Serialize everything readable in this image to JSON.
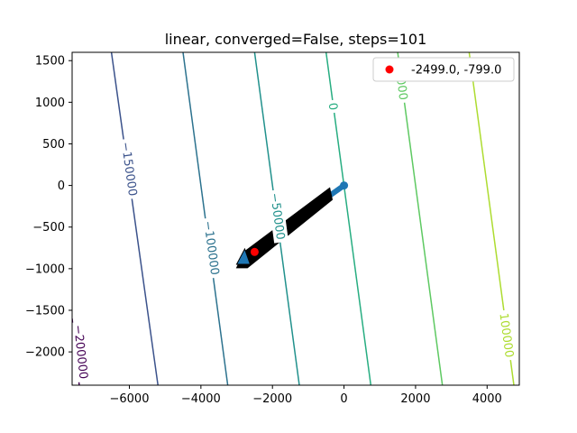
{
  "chart_data": {
    "type": "contour",
    "title": "linear, converged=False, steps=101",
    "xlabel": "",
    "ylabel": "",
    "xlim": [
      -7600,
      4900
    ],
    "ylim": [
      -2400,
      1600
    ],
    "x_ticks": [
      -6000,
      -4000,
      -2000,
      0,
      2000,
      4000
    ],
    "x_tick_labels": [
      "−6000",
      "−4000",
      "−2000",
      "0",
      "2000",
      "4000"
    ],
    "y_ticks": [
      1500,
      1000,
      500,
      0,
      -500,
      -1000,
      -1500,
      -2000
    ],
    "y_tick_labels": [
      "1500",
      "1000",
      "500",
      "0",
      "−500",
      "−1000",
      "−1500",
      "−2000"
    ],
    "grid": false,
    "contours": [
      {
        "level": -200000,
        "label": "−200000",
        "color": "#440154",
        "points": [
          [
            -7600,
            -1600
          ],
          [
            -7400,
            -2400
          ]
        ],
        "label_at": [
          -7350,
          -2000
        ]
      },
      {
        "level": -150000,
        "label": "−150000",
        "color": "#3b528b",
        "points": [
          [
            -6500,
            1600
          ],
          [
            -5200,
            -2400
          ]
        ],
        "label_at": [
          -6000,
          200
        ]
      },
      {
        "level": -100000,
        "label": "−100000",
        "color": "#2c728e",
        "points": [
          [
            -4500,
            1600
          ],
          [
            -3250,
            -2400
          ]
        ],
        "label_at": [
          -3700,
          -750
        ]
      },
      {
        "level": -50000,
        "label": "−50000",
        "color": "#21918c",
        "points": [
          [
            -2500,
            1600
          ],
          [
            -1250,
            -2400
          ]
        ],
        "label_at": [
          -1850,
          -370
        ]
      },
      {
        "level": 0,
        "label": "0",
        "color": "#27ad81",
        "points": [
          [
            -500,
            1600
          ],
          [
            750,
            -2400
          ]
        ],
        "label_at": [
          -300,
          950
        ]
      },
      {
        "level": 50000,
        "label": "50000",
        "color": "#5ec962",
        "points": [
          [
            1500,
            1600
          ],
          [
            2750,
            -2400
          ]
        ],
        "label_at": [
          1600,
          1250
        ]
      },
      {
        "level": 100000,
        "label": "100000",
        "color": "#addc30",
        "points": [
          [
            3500,
            1600
          ],
          [
            4750,
            -2400
          ]
        ],
        "label_at": [
          4550,
          -1800
        ]
      }
    ],
    "path": {
      "name": "optimizer trajectory",
      "color": "#1f77b4",
      "start": [
        0,
        0
      ],
      "end": [
        -2800,
        -850
      ]
    },
    "path_polygon": [
      [
        -3000,
        -990
      ],
      [
        -2800,
        -800
      ],
      [
        -400,
        -30
      ],
      [
        -330,
        -170
      ],
      [
        -2700,
        -990
      ]
    ],
    "point": {
      "x": -2499.0,
      "y": -799.0,
      "color": "#ff0000"
    },
    "legend": {
      "placement": "top-right",
      "entries": [
        {
          "label": "-2499.0, -799.0",
          "marker": "circle",
          "color": "#ff0000"
        }
      ]
    }
  }
}
